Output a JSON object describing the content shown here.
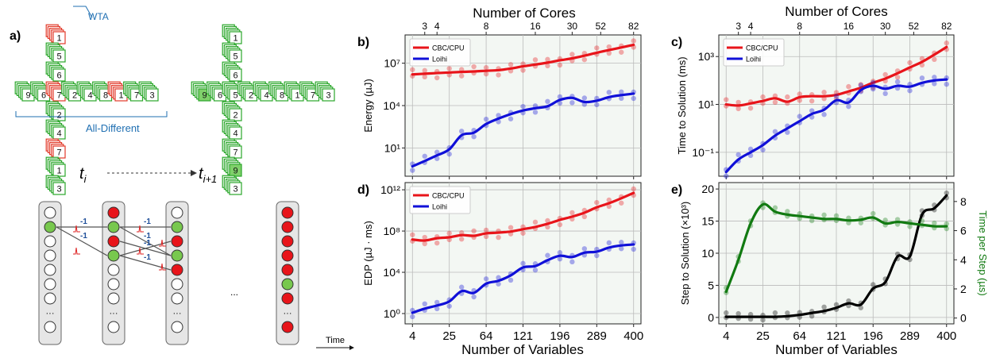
{
  "colors": {
    "red": "#e8141a",
    "blue": "#1010d8",
    "green": "#117a11",
    "black": "#000000",
    "cell_green": "#2aa62a",
    "cell_red": "#e23a2a",
    "fill_green": "#7fd06a",
    "node_red": "#e8141a",
    "node_green": "#78c84e",
    "text_blue": "#1f6fb2",
    "panel_bg": "#f3f7f3"
  },
  "panel_a": {
    "label": "a)",
    "wta": "WTA",
    "all_different": "All-Different",
    "t_i": "t",
    "t_i_sub": "i",
    "t_i1": "t",
    "t_i1_sub": "i+1",
    "time": "Time",
    "dots": "···",
    "left_cross": {
      "vertical": [
        "1",
        "5",
        "6",
        "7",
        "2",
        "4",
        "7",
        "1",
        "3"
      ],
      "horizontal": [
        "9",
        "6",
        "7",
        "2",
        "4",
        "8",
        "1",
        "7",
        "3"
      ],
      "red_v": [
        0,
        3,
        6
      ],
      "red_h": [
        2,
        6
      ]
    },
    "right_cross": {
      "vertical": [
        "1",
        "5",
        "6",
        "5",
        "2",
        "4",
        "7",
        "9",
        "3"
      ],
      "horizontal": [
        "9",
        "6",
        "5",
        "2",
        "4",
        "8",
        "1",
        "7",
        "3"
      ],
      "filled_v": [
        7
      ],
      "filled_h": [
        0
      ]
    },
    "edge_label": "-1",
    "network_dots": "..."
  },
  "panels": {
    "b": {
      "label": "b)",
      "ylabel": "Energy (µJ)"
    },
    "c": {
      "label": "c)",
      "ylabel": "Time to Solution (ms)"
    },
    "d": {
      "label": "d)",
      "ylabel": "EDP (µJ · ms)"
    },
    "e": {
      "label": "e)",
      "ylabel": "Step to Solution (×10³)",
      "ylabel2": "Time per Step (µs)"
    }
  },
  "top_axis_title": "Number of Cores",
  "bottom_axis_title": "Number of Variables",
  "chart_data": [
    {
      "id": "b",
      "type": "line",
      "yscale": "log",
      "ylim": [
        0.1,
        1000000000
      ],
      "ylabel": "Energy (µJ)",
      "x_categories": [
        "4",
        "25",
        "64",
        "121",
        "196",
        "289",
        "400"
      ],
      "x_top_ticks": [
        "3",
        "4",
        "8",
        "16",
        "30",
        "52",
        "82"
      ],
      "ytick_labels": [
        "10¹",
        "10⁴",
        "10⁷"
      ],
      "ytick_values": [
        10,
        10000,
        10000000
      ],
      "legend": "upper-left",
      "series": [
        {
          "name": "CBC/CPU",
          "color": "#e8141a",
          "x": [
            4,
            9,
            16,
            25,
            36,
            49,
            64,
            81,
            100,
            121,
            144,
            169,
            196,
            225,
            256,
            289,
            324,
            361,
            400
          ],
          "y": [
            1600000,
            1800000,
            2000000,
            2200000,
            2400000,
            2600000,
            2900000,
            3200000,
            4200000,
            6000000,
            8000000,
            11000000,
            16000000,
            22000000,
            34000000,
            55000000,
            85000000,
            130000000,
            200000000
          ]
        },
        {
          "name": "Loihi",
          "color": "#1010d8",
          "x": [
            4,
            9,
            16,
            25,
            36,
            49,
            64,
            81,
            100,
            121,
            144,
            169,
            196,
            225,
            256,
            289,
            324,
            361,
            400
          ],
          "y": [
            0.5,
            1.2,
            3,
            8,
            80,
            120,
            500,
            1200,
            2500,
            4500,
            6500,
            9000,
            25000,
            35000,
            18000,
            22000,
            40000,
            55000,
            70000
          ]
        }
      ]
    },
    {
      "id": "c",
      "type": "line",
      "yscale": "log",
      "ylim": [
        0.01,
        8000
      ],
      "ylabel": "Time to Solution (ms)",
      "x_categories": [
        "4",
        "25",
        "64",
        "121",
        "196",
        "289",
        "400"
      ],
      "x_top_ticks": [
        "3",
        "4",
        "8",
        "16",
        "30",
        "52",
        "82"
      ],
      "ytick_labels": [
        "10⁻¹",
        "10¹",
        "10³"
      ],
      "ytick_values": [
        0.1,
        10,
        1000
      ],
      "legend": "upper-left",
      "series": [
        {
          "name": "CBC/CPU",
          "color": "#e8141a",
          "x": [
            4,
            9,
            16,
            25,
            36,
            49,
            64,
            81,
            100,
            121,
            144,
            169,
            196,
            225,
            256,
            289,
            324,
            361,
            400
          ],
          "y": [
            10,
            9,
            11,
            14,
            18,
            13,
            20,
            22,
            22,
            25,
            35,
            50,
            80,
            120,
            200,
            350,
            600,
            1200,
            2500
          ]
        },
        {
          "name": "Loihi",
          "color": "#1010d8",
          "x": [
            4,
            9,
            16,
            25,
            36,
            49,
            64,
            81,
            100,
            121,
            144,
            169,
            196,
            225,
            256,
            289,
            324,
            361,
            400
          ],
          "y": [
            0.015,
            0.05,
            0.1,
            0.2,
            0.5,
            1,
            2,
            4,
            6,
            15,
            12,
            40,
            60,
            45,
            60,
            55,
            80,
            100,
            110
          ]
        }
      ]
    },
    {
      "id": "d",
      "type": "line",
      "yscale": "log",
      "ylim": [
        0.1,
        5000000000000
      ],
      "ylabel": "EDP (µJ · ms)",
      "x_categories": [
        "4",
        "25",
        "64",
        "121",
        "196",
        "289",
        "400"
      ],
      "ytick_labels": [
        "10⁰",
        "10⁴",
        "10⁸",
        "10¹²"
      ],
      "ytick_values": [
        1,
        10000,
        100000000,
        1000000000000
      ],
      "legend": "upper-left",
      "series": [
        {
          "name": "CBC/CPU",
          "color": "#e8141a",
          "x": [
            4,
            9,
            16,
            25,
            36,
            49,
            64,
            81,
            100,
            121,
            144,
            169,
            196,
            225,
            256,
            289,
            324,
            361,
            400
          ],
          "y": [
            15000000,
            12000000,
            20000000,
            25000000,
            40000000,
            35000000,
            60000000,
            70000000,
            90000000,
            150000000,
            250000000,
            500000000,
            1200000000,
            2500000000,
            6000000000,
            20000000000,
            50000000000,
            150000000000,
            500000000000
          ]
        },
        {
          "name": "Loihi",
          "color": "#1010d8",
          "x": [
            4,
            9,
            16,
            25,
            36,
            49,
            64,
            81,
            100,
            121,
            144,
            169,
            196,
            225,
            256,
            289,
            324,
            361,
            400
          ],
          "y": [
            1.2,
            3,
            6,
            15,
            150,
            100,
            800,
            1500,
            5000,
            30000,
            40000,
            150000,
            400000,
            300000,
            800000,
            1000000,
            2500000,
            4000000,
            5000000
          ]
        }
      ]
    },
    {
      "id": "e",
      "type": "line",
      "yscale": "linear",
      "ylim": [
        -1,
        21
      ],
      "y2lim": [
        -0.4,
        9.3
      ],
      "ylabel": "Step to Solution (×10³)",
      "ylabel2": "Time per Step (µs)",
      "x_categories": [
        "4",
        "25",
        "64",
        "121",
        "196",
        "289",
        "400"
      ],
      "ytick_labels": [
        "0",
        "5",
        "10",
        "15",
        "20"
      ],
      "ytick_values": [
        0,
        5,
        10,
        15,
        20
      ],
      "y2tick_labels": [
        "0",
        "2",
        "4",
        "6",
        "8"
      ],
      "y2tick_values": [
        0,
        2,
        4,
        6,
        8
      ],
      "series": [
        {
          "name": "",
          "color": "#000000",
          "axis": "left",
          "x": [
            4,
            9,
            16,
            25,
            36,
            49,
            64,
            81,
            100,
            121,
            144,
            169,
            196,
            225,
            256,
            289,
            324,
            361,
            400
          ],
          "y": [
            0.1,
            0.1,
            0.1,
            0.1,
            0.1,
            0.2,
            0.4,
            0.7,
            1,
            1.5,
            2.2,
            2,
            4.5,
            5.5,
            9.5,
            9.5,
            16,
            17,
            19
          ]
        },
        {
          "name": "",
          "color": "#117a11",
          "axis": "right",
          "x": [
            4,
            9,
            16,
            25,
            36,
            49,
            64,
            81,
            100,
            121,
            144,
            169,
            196,
            225,
            256,
            289,
            324,
            361,
            400
          ],
          "y": [
            1.8,
            4,
            6.5,
            7.8,
            7.3,
            7.1,
            7,
            6.9,
            6.8,
            6.8,
            6.7,
            6.75,
            6.9,
            6.5,
            6.6,
            6.5,
            6.4,
            6.3,
            6.3
          ]
        }
      ]
    }
  ]
}
